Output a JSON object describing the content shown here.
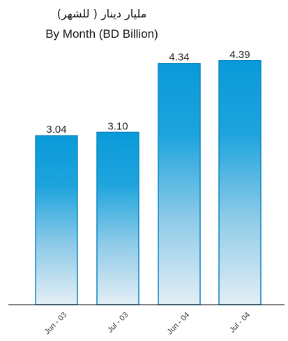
{
  "chart_data": {
    "type": "bar",
    "title_arabic": "مليار دينار ( للشهر)",
    "title": "By Month  (BD Billion)",
    "categories": [
      "Jun - 03",
      "Jul - 03",
      "Jun - 04",
      "Jul - 04"
    ],
    "values": [
      3.04,
      3.1,
      4.34,
      4.39
    ],
    "value_labels": [
      "3.04",
      "3.10",
      "4.34",
      "4.39"
    ],
    "ylim": [
      0,
      4.5
    ],
    "grid": false,
    "colors": {
      "bar_top": "#0a9ad9",
      "bar_bottom": "#e4eef5",
      "bar_stroke": "#0a86c3"
    }
  }
}
